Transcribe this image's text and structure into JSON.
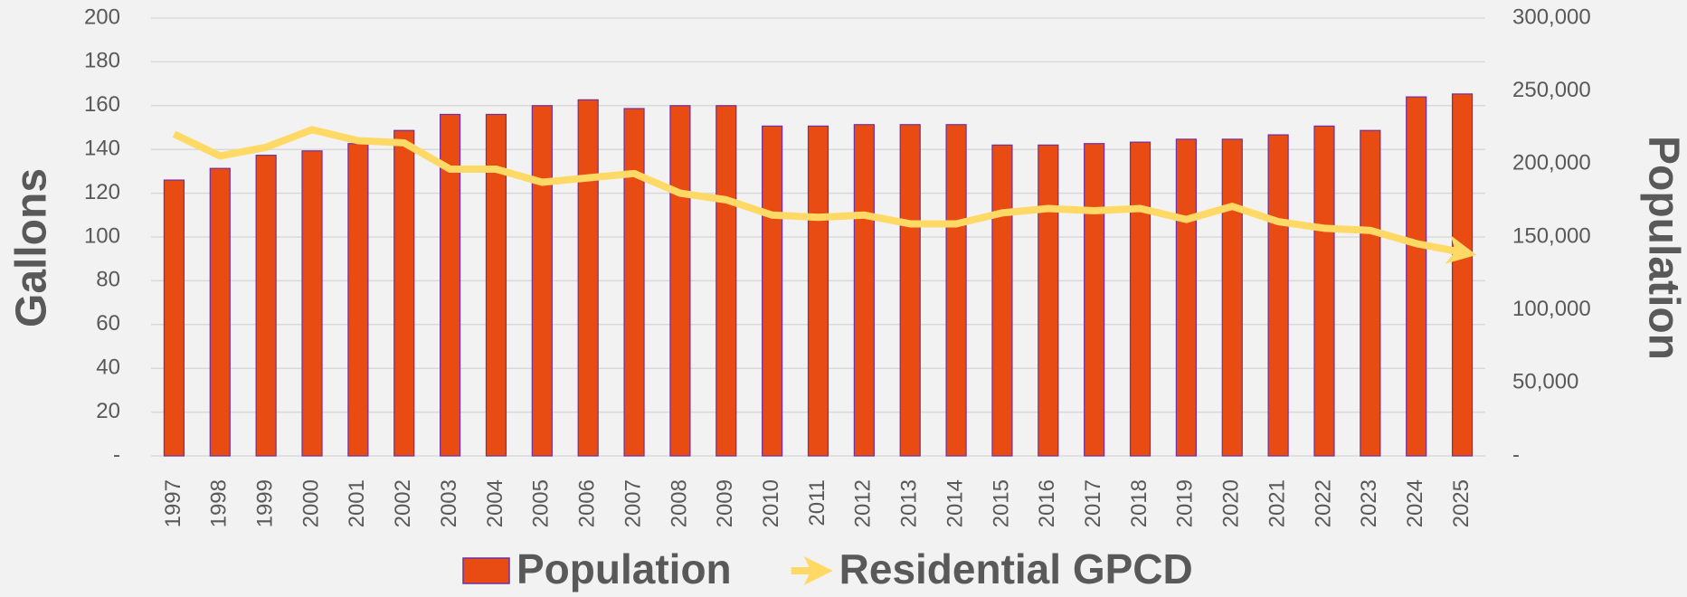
{
  "chart_data": {
    "type": "bar",
    "categories": [
      "1997",
      "1998",
      "1999",
      "2000",
      "2001",
      "2002",
      "2003",
      "2004",
      "2005",
      "2006",
      "2007",
      "2008",
      "2009",
      "2010",
      "2011",
      "2012",
      "2013",
      "2014",
      "2015",
      "2016",
      "2017",
      "2018",
      "2019",
      "2020",
      "2021",
      "2022",
      "2023",
      "2024",
      "2025"
    ],
    "series": [
      {
        "name": "Population",
        "type": "bar",
        "axis": "y2",
        "color": "#e84c13",
        "edge_color": "#7030a0",
        "values": [
          189000,
          197000,
          206000,
          209000,
          214000,
          223000,
          234000,
          234000,
          240000,
          244000,
          238000,
          240000,
          240000,
          226000,
          226000,
          227000,
          227000,
          227000,
          213000,
          213000,
          214000,
          215000,
          217000,
          217000,
          220000,
          226000,
          223000,
          246000,
          248000
        ]
      },
      {
        "name": "Residential GPCD",
        "type": "line",
        "axis": "y",
        "color": "#ffd966",
        "values": [
          147,
          137,
          141,
          149,
          144,
          143,
          131,
          131,
          125,
          127,
          129,
          120,
          117,
          110,
          109,
          110,
          106,
          106,
          111,
          113,
          112,
          113,
          108,
          114,
          107,
          104,
          103,
          97,
          93
        ]
      }
    ],
    "ylabel": "Gallons",
    "y2label": "Population",
    "ylim": [
      0,
      200
    ],
    "yticks": [
      {
        "value": 0,
        "label": "-"
      },
      20,
      40,
      60,
      80,
      100,
      120,
      140,
      160,
      180,
      200
    ],
    "y2lim": [
      0,
      300000
    ],
    "y2ticks": [
      {
        "value": 0,
        "label": "-"
      },
      {
        "value": 50000,
        "label": "50,000"
      },
      {
        "value": 100000,
        "label": "100,000"
      },
      {
        "value": 150000,
        "label": "150,000"
      },
      {
        "value": 200000,
        "label": "200,000"
      },
      {
        "value": 250000,
        "label": "250,000"
      },
      {
        "value": 300000,
        "label": "300,000"
      }
    ],
    "grid": true,
    "legend": "bottom"
  }
}
